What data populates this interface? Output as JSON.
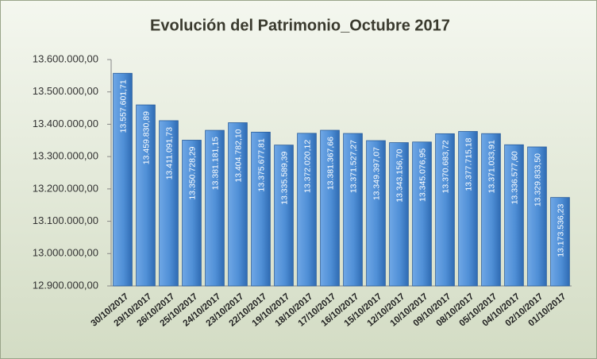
{
  "chart_data": {
    "type": "bar",
    "title": "Evolución del Patrimonio_Octubre 2017",
    "categories": [
      "30/10/2017",
      "29/10/2017",
      "26/10/2017",
      "25/10/2017",
      "24/10/2017",
      "23/10/2017",
      "22/10/2017",
      "19/10/2017",
      "18/10/2017",
      "17/10/2017",
      "16/10/2017",
      "15/10/2017",
      "12/10/2017",
      "10/10/2017",
      "09/10/2017",
      "08/10/2017",
      "05/10/2017",
      "04/10/2017",
      "02/10/2017",
      "01/10/2017"
    ],
    "values": [
      13557601.71,
      13459830.89,
      13411091.73,
      13350728.29,
      13381181.15,
      13404782.1,
      13375677.81,
      13335589.39,
      13372020.12,
      13381367.66,
      13371527.27,
      13349397.07,
      13343156.7,
      13345076.95,
      13370683.72,
      13377715.18,
      13371033.91,
      13336577.6,
      13329833.5,
      13173536.23
    ],
    "value_labels": [
      "13.557.601,71",
      "13.459.830,89",
      "13.411.091,73",
      "13.350.728,29",
      "13.381.181,15",
      "13.404.782,10",
      "13.375.677,81",
      "13.335.589,39",
      "13.372.020,12",
      "13.381.367,66",
      "13.371.527,27",
      "13.349.397,07",
      "13.343.156,70",
      "13.345.076,95",
      "13.370.683,72",
      "13.377.715,18",
      "13.371.033,91",
      "13.336.577,60",
      "13.329.833,50",
      "13.173.536,23"
    ],
    "color": "#4f8fd6",
    "ylim": [
      12900000,
      13600000
    ],
    "yticks": [
      {
        "value": 12900000,
        "label": "12.900.000,00"
      },
      {
        "value": 13000000,
        "label": "13.000.000,00"
      },
      {
        "value": 13100000,
        "label": "13.100.000,00"
      },
      {
        "value": 13200000,
        "label": "13.200.000,00"
      },
      {
        "value": 13300000,
        "label": "13.300.000,00"
      },
      {
        "value": 13400000,
        "label": "13.400.000,00"
      },
      {
        "value": 13500000,
        "label": "13.500.000,00"
      },
      {
        "value": 13600000,
        "label": "13.600.000,00"
      }
    ],
    "grid": false
  }
}
